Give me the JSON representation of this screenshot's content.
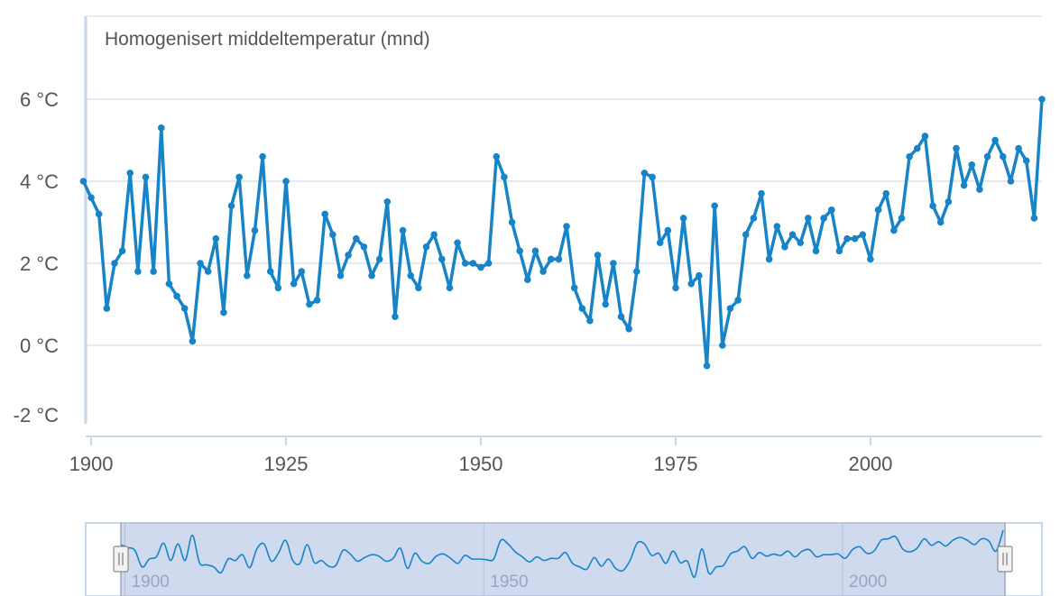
{
  "chart_data": {
    "type": "line",
    "series_label": "Homogenisert middeltemperatur (mnd)",
    "x": [
      1899,
      1900,
      1901,
      1902,
      1903,
      1904,
      1905,
      1906,
      1907,
      1908,
      1909,
      1910,
      1911,
      1912,
      1913,
      1914,
      1915,
      1916,
      1917,
      1918,
      1919,
      1920,
      1921,
      1922,
      1923,
      1924,
      1925,
      1926,
      1927,
      1928,
      1929,
      1930,
      1931,
      1932,
      1933,
      1934,
      1935,
      1936,
      1937,
      1938,
      1939,
      1940,
      1941,
      1942,
      1943,
      1944,
      1945,
      1946,
      1947,
      1948,
      1949,
      1950,
      1951,
      1952,
      1953,
      1954,
      1955,
      1956,
      1957,
      1958,
      1959,
      1960,
      1961,
      1962,
      1963,
      1964,
      1965,
      1966,
      1967,
      1968,
      1969,
      1970,
      1971,
      1972,
      1973,
      1974,
      1975,
      1976,
      1977,
      1978,
      1979,
      1980,
      1981,
      1982,
      1983,
      1984,
      1985,
      1986,
      1987,
      1988,
      1989,
      1990,
      1991,
      1992,
      1993,
      1994,
      1995,
      1996,
      1997,
      1998,
      1999,
      2000,
      2001,
      2002,
      2003,
      2004,
      2005,
      2006,
      2007,
      2008,
      2009,
      2010,
      2011,
      2012,
      2013,
      2014,
      2015,
      2016,
      2017,
      2018,
      2019,
      2020,
      2021,
      2022
    ],
    "values": [
      4.0,
      3.6,
      3.2,
      0.9,
      2.0,
      2.3,
      4.2,
      1.8,
      4.1,
      1.8,
      5.3,
      1.5,
      1.2,
      0.9,
      0.1,
      2.0,
      1.8,
      2.6,
      0.8,
      3.4,
      4.1,
      1.7,
      2.8,
      4.6,
      1.8,
      1.4,
      4.0,
      1.5,
      1.8,
      1.0,
      1.1,
      3.2,
      2.7,
      1.7,
      2.2,
      2.6,
      2.4,
      1.7,
      2.1,
      3.5,
      0.7,
      2.8,
      1.7,
      1.4,
      2.4,
      2.7,
      2.1,
      1.4,
      2.5,
      2.0,
      2.0,
      1.9,
      2.0,
      4.6,
      4.1,
      3.0,
      2.3,
      1.6,
      2.3,
      1.8,
      2.1,
      2.1,
      2.9,
      1.4,
      0.9,
      0.6,
      2.2,
      1.0,
      2.0,
      0.7,
      0.4,
      1.8,
      4.2,
      4.1,
      2.5,
      2.8,
      1.4,
      3.1,
      1.5,
      1.7,
      -0.5,
      3.4,
      0.0,
      0.9,
      1.1,
      2.7,
      3.1,
      3.7,
      2.1,
      2.9,
      2.4,
      2.7,
      2.5,
      3.1,
      2.3,
      3.1,
      3.3,
      2.3,
      2.6,
      2.6,
      2.7,
      2.1,
      3.3,
      3.7,
      2.8,
      3.1,
      4.6,
      4.8,
      5.1,
      3.4,
      3.0,
      3.5,
      4.8,
      3.9,
      4.4,
      3.8,
      4.6,
      5.0,
      4.6,
      4.0,
      4.8,
      4.5,
      3.1,
      6.0
    ],
    "ylim": [
      -2,
      6
    ],
    "y_ticks": [
      {
        "value": -2,
        "label": "-2 °C"
      },
      {
        "value": 0,
        "label": "0 °C"
      },
      {
        "value": 2,
        "label": "2 °C"
      },
      {
        "value": 4,
        "label": "4 °C"
      },
      {
        "value": 6,
        "label": "6 °C"
      }
    ],
    "x_ticks": [
      {
        "value": 1900,
        "label": "1900"
      },
      {
        "value": 1925,
        "label": "1925"
      },
      {
        "value": 1950,
        "label": "1950"
      },
      {
        "value": 1975,
        "label": "1975"
      },
      {
        "value": 2000,
        "label": "2000"
      }
    ],
    "grid": true,
    "navigator": {
      "ticks": [
        {
          "value": 1900,
          "label": "1900"
        },
        {
          "value": 1950,
          "label": "1950"
        },
        {
          "value": 2000,
          "label": "2000"
        }
      ]
    },
    "colors": {
      "line": "#1784c7",
      "grid": "#d6dee8",
      "axis": "#c7d6e8",
      "navigator_fill": "#cdd8ee"
    }
  }
}
